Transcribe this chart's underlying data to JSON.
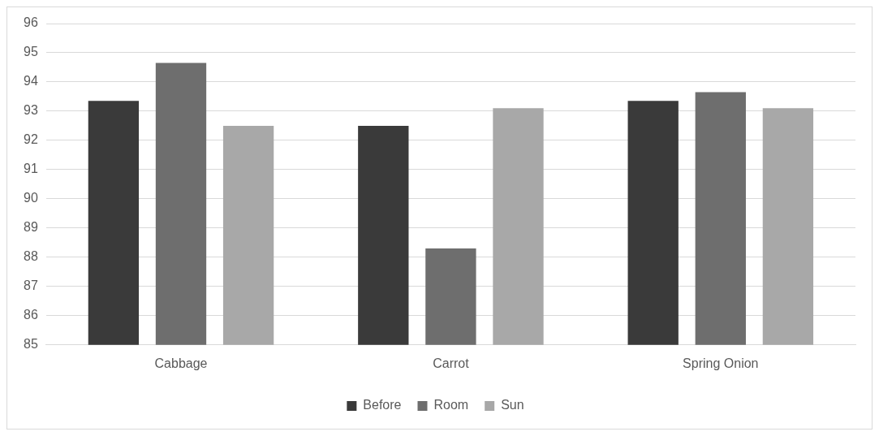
{
  "chart_data": {
    "type": "bar",
    "categories": [
      "Cabbage",
      "Carrot",
      "Spring Onion"
    ],
    "series": [
      {
        "name": "Before",
        "color": "#3a3a3a",
        "values": [
          93.35,
          92.5,
          93.35
        ]
      },
      {
        "name": "Room",
        "color": "#6e6e6e",
        "values": [
          94.65,
          88.3,
          93.65
        ]
      },
      {
        "name": "Sun",
        "color": "#a8a8a8",
        "values": [
          92.5,
          93.1,
          93.1
        ]
      }
    ],
    "ylim": [
      85,
      96
    ],
    "yticks": [
      85,
      86,
      87,
      88,
      89,
      90,
      91,
      92,
      93,
      94,
      95,
      96
    ],
    "grid": "y",
    "legend": "bottom"
  }
}
